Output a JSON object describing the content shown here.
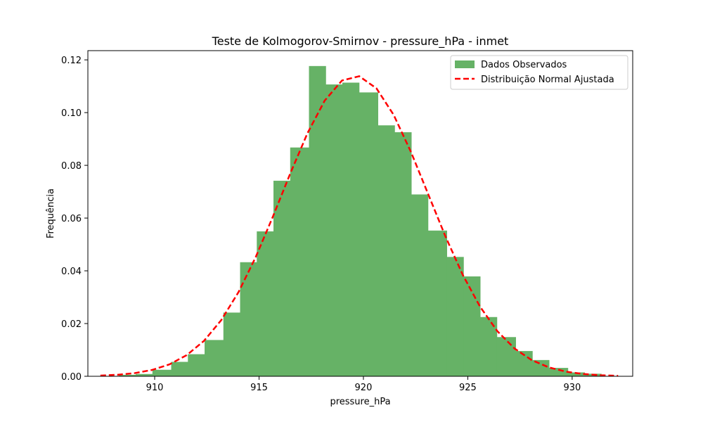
{
  "chart_data": {
    "type": "bar",
    "title": "Teste de Kolmogorov-Smirnov - pressure_hPa - inmet",
    "xlabel": "pressure_hPa",
    "ylabel": "Frequência",
    "xlim": [
      906.8,
      932.9
    ],
    "ylim": [
      0,
      0.1235
    ],
    "x_ticks": [
      910,
      915,
      920,
      925,
      930
    ],
    "y_ticks": [
      0.0,
      0.02,
      0.04,
      0.06,
      0.08,
      0.1,
      0.12
    ],
    "y_tick_labels": [
      "0.00",
      "0.02",
      "0.04",
      "0.06",
      "0.08",
      "0.10",
      "0.12"
    ],
    "grid": false,
    "legend_position": "top-right",
    "colors": {
      "histogram": "#66b266",
      "normal_curve": "#ff0000"
    },
    "histogram": {
      "name": "Dados Observados",
      "bin_edges": [
        908.3,
        909.1,
        909.9,
        910.8,
        911.6,
        912.4,
        913.3,
        914.1,
        914.9,
        915.7,
        916.5,
        917.4,
        918.2,
        919.0,
        919.8,
        920.7,
        921.5,
        922.3,
        923.1,
        924.0,
        924.8,
        925.6,
        926.4,
        927.3,
        928.1,
        928.9,
        929.8,
        930.6,
        931.4
      ],
      "values": [
        0.0005,
        0.0008,
        0.0024,
        0.0054,
        0.0083,
        0.0137,
        0.0241,
        0.0432,
        0.0549,
        0.0741,
        0.0867,
        0.1176,
        0.1106,
        0.1113,
        0.1076,
        0.0951,
        0.0925,
        0.0689,
        0.0552,
        0.0452,
        0.0378,
        0.0224,
        0.0148,
        0.0095,
        0.0061,
        0.0031,
        0.0014,
        0.0009
      ]
    },
    "normal_fit": {
      "name": "Distribuição Normal Ajustada",
      "mean": 919.6,
      "std": 3.5,
      "x_range": [
        907.4,
        932.2
      ]
    }
  }
}
